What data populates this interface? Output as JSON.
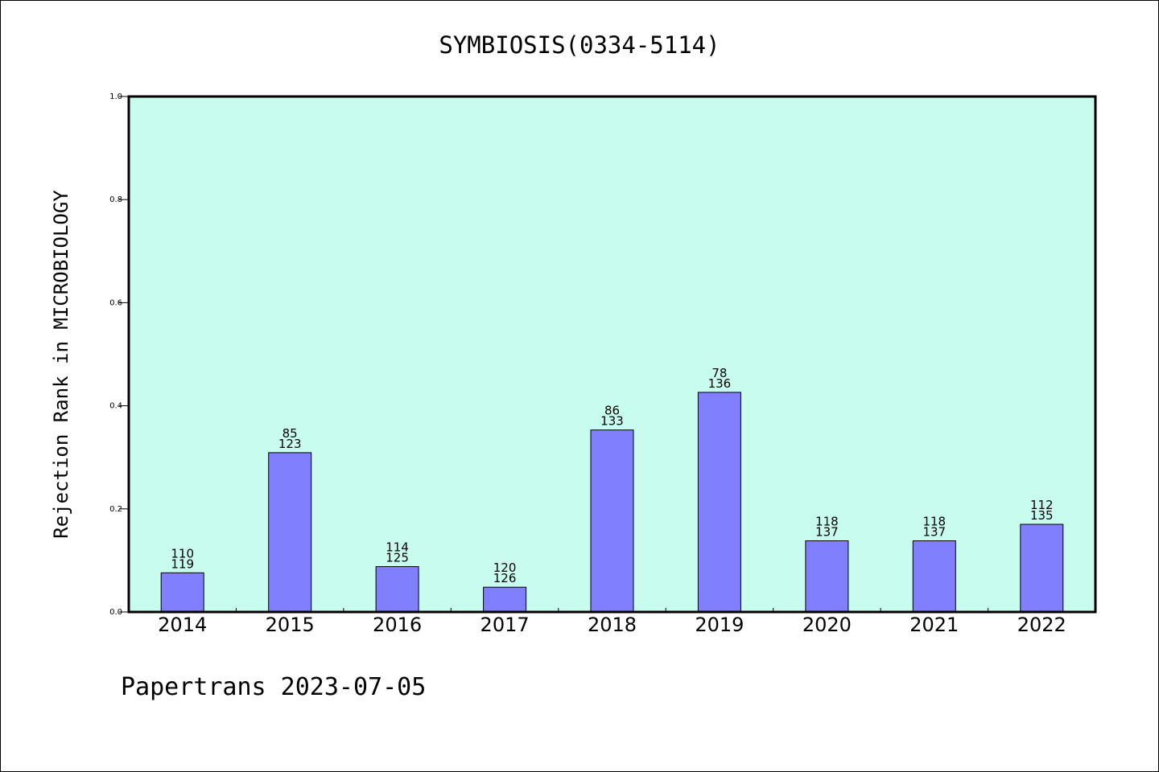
{
  "chart_data": {
    "type": "bar",
    "title": "SYMBIOSIS(0334-5114)",
    "xlabel": "",
    "ylabel": "Rejection Rank in MICROBIOLOGY",
    "categories": [
      "2014",
      "2015",
      "2016",
      "2017",
      "2018",
      "2019",
      "2020",
      "2021",
      "2022"
    ],
    "values": [
      0.076,
      0.309,
      0.088,
      0.048,
      0.353,
      0.426,
      0.138,
      0.138,
      0.17
    ],
    "labels_top": [
      "110",
      "85",
      "114",
      "120",
      "86",
      "78",
      "118",
      "118",
      "112"
    ],
    "labels_bottom": [
      "119",
      "123",
      "125",
      "126",
      "133",
      "136",
      "137",
      "137",
      "135"
    ],
    "ylim": [
      0,
      1.0
    ],
    "yticks": [
      "0.0",
      "0.2",
      "0.4",
      "0.6",
      "0.8",
      "1.0"
    ],
    "grid": false,
    "colors": {
      "plot_bg": "#c8fcef",
      "bar": "#8080ff",
      "bar_edge": "#000000"
    }
  },
  "footer": "Papertrans 2023-07-05"
}
